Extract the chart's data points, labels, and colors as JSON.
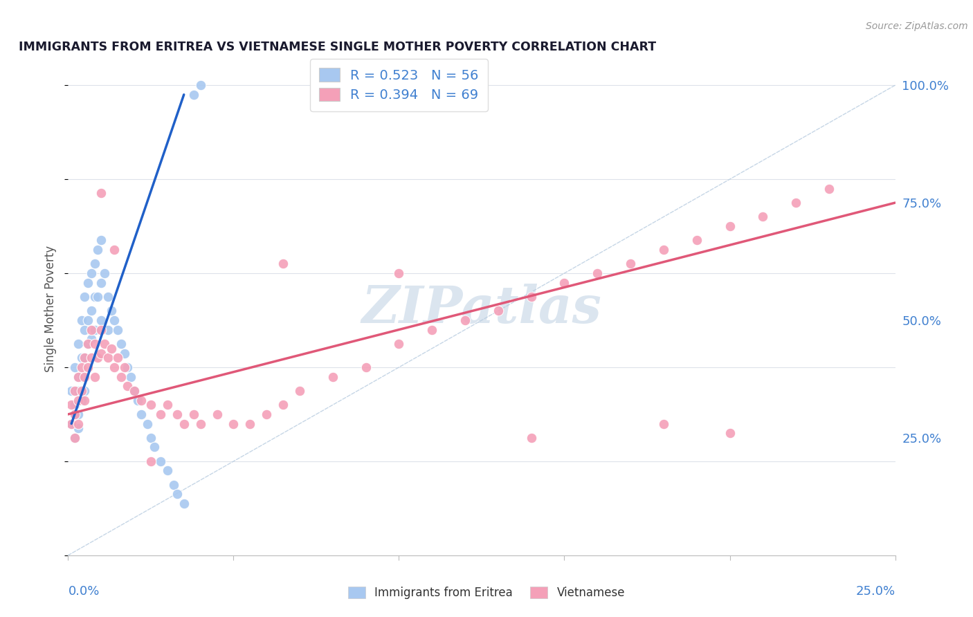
{
  "title": "IMMIGRANTS FROM ERITREA VS VIETNAMESE SINGLE MOTHER POVERTY CORRELATION CHART",
  "source": "Source: ZipAtlas.com",
  "ylabel": "Single Mother Poverty",
  "legend_eritrea_R": "0.523",
  "legend_eritrea_N": "56",
  "legend_vietnamese_R": "0.394",
  "legend_vietnamese_N": "69",
  "color_eritrea": "#a8c8f0",
  "color_vietnamese": "#f4a0b8",
  "color_eritrea_line": "#2060c8",
  "color_vietnamese_line": "#e05878",
  "color_diag": "#b8cce0",
  "color_label_blue": "#4080d0",
  "color_grid": "#dde2ea",
  "background_color": "#ffffff",
  "watermark": "ZIPatlas",
  "xlim": [
    0.0,
    0.25
  ],
  "ylim": [
    0.0,
    1.05
  ],
  "eritrea_x": [
    0.001,
    0.001,
    0.002,
    0.002,
    0.002,
    0.002,
    0.003,
    0.003,
    0.003,
    0.003,
    0.003,
    0.004,
    0.004,
    0.004,
    0.004,
    0.005,
    0.005,
    0.005,
    0.005,
    0.006,
    0.006,
    0.006,
    0.007,
    0.007,
    0.007,
    0.008,
    0.008,
    0.008,
    0.009,
    0.009,
    0.01,
    0.01,
    0.01,
    0.011,
    0.012,
    0.012,
    0.013,
    0.014,
    0.015,
    0.016,
    0.017,
    0.018,
    0.019,
    0.02,
    0.021,
    0.022,
    0.024,
    0.025,
    0.026,
    0.028,
    0.03,
    0.032,
    0.033,
    0.035,
    0.038,
    0.04
  ],
  "eritrea_y": [
    0.35,
    0.28,
    0.4,
    0.32,
    0.3,
    0.25,
    0.45,
    0.38,
    0.35,
    0.3,
    0.27,
    0.5,
    0.42,
    0.38,
    0.33,
    0.55,
    0.48,
    0.42,
    0.35,
    0.58,
    0.5,
    0.45,
    0.6,
    0.52,
    0.46,
    0.62,
    0.55,
    0.48,
    0.65,
    0.55,
    0.67,
    0.58,
    0.5,
    0.6,
    0.55,
    0.48,
    0.52,
    0.5,
    0.48,
    0.45,
    0.43,
    0.4,
    0.38,
    0.35,
    0.33,
    0.3,
    0.28,
    0.25,
    0.23,
    0.2,
    0.18,
    0.15,
    0.13,
    0.11,
    0.98,
    1.0
  ],
  "vietnamese_x": [
    0.001,
    0.001,
    0.002,
    0.002,
    0.002,
    0.003,
    0.003,
    0.003,
    0.004,
    0.004,
    0.005,
    0.005,
    0.005,
    0.006,
    0.006,
    0.007,
    0.007,
    0.008,
    0.008,
    0.009,
    0.01,
    0.01,
    0.011,
    0.012,
    0.013,
    0.014,
    0.015,
    0.016,
    0.017,
    0.018,
    0.02,
    0.022,
    0.025,
    0.028,
    0.03,
    0.033,
    0.035,
    0.038,
    0.04,
    0.045,
    0.05,
    0.055,
    0.06,
    0.065,
    0.07,
    0.08,
    0.09,
    0.1,
    0.11,
    0.12,
    0.13,
    0.14,
    0.15,
    0.16,
    0.17,
    0.18,
    0.19,
    0.2,
    0.21,
    0.22,
    0.23,
    0.014,
    0.065,
    0.1,
    0.14,
    0.2,
    0.01,
    0.025,
    0.18
  ],
  "vietnamese_y": [
    0.32,
    0.28,
    0.35,
    0.3,
    0.25,
    0.38,
    0.33,
    0.28,
    0.4,
    0.35,
    0.42,
    0.38,
    0.33,
    0.45,
    0.4,
    0.48,
    0.42,
    0.45,
    0.38,
    0.42,
    0.48,
    0.43,
    0.45,
    0.42,
    0.44,
    0.4,
    0.42,
    0.38,
    0.4,
    0.36,
    0.35,
    0.33,
    0.32,
    0.3,
    0.32,
    0.3,
    0.28,
    0.3,
    0.28,
    0.3,
    0.28,
    0.28,
    0.3,
    0.32,
    0.35,
    0.38,
    0.4,
    0.45,
    0.48,
    0.5,
    0.52,
    0.55,
    0.58,
    0.6,
    0.62,
    0.65,
    0.67,
    0.7,
    0.72,
    0.75,
    0.78,
    0.65,
    0.62,
    0.6,
    0.25,
    0.26,
    0.77,
    0.2,
    0.28
  ],
  "eritrea_line_x": [
    0.001,
    0.035
  ],
  "eritrea_line_y": [
    0.28,
    0.98
  ],
  "vietnamese_line_x": [
    0.0,
    0.25
  ],
  "vietnamese_line_y": [
    0.3,
    0.75
  ]
}
